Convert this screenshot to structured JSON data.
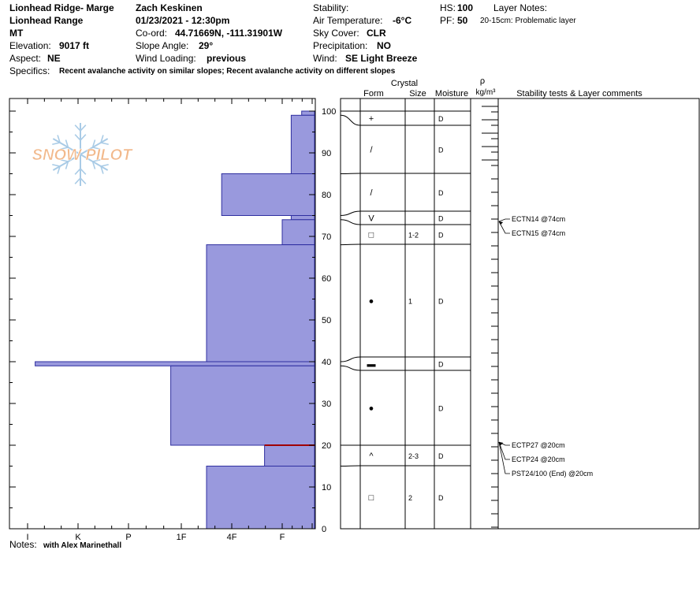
{
  "header": {
    "location": "Lionhead Ridge- Marge",
    "range": "Lionhead Range",
    "state": "MT",
    "elevation_label": "Elevation:",
    "elevation_value": "9017 ft",
    "aspect_label": "Aspect:",
    "aspect_value": "NE",
    "observer": "Zach Keskinen",
    "datetime": "01/23/2021 - 12:30pm",
    "coord_label": "Co-ord:",
    "coord_value": "44.71669N, -111.31901W",
    "slope_label": "Slope Angle:",
    "slope_value": "29°",
    "wind_loading_label": "Wind Loading:",
    "wind_loading_value": "previous",
    "stability_label": "Stability:",
    "air_temp_label": "Air Temperature:",
    "air_temp_value": "-6°C",
    "sky_label": "Sky Cover:",
    "sky_value": "CLR",
    "precip_label": "Precipitation:",
    "precip_value": "NO",
    "wind_label": "Wind:",
    "wind_value": "SE Light Breeze",
    "hs_label": "HS:",
    "hs_value": "100",
    "pf_label": "PF:",
    "pf_value": "50",
    "layer_notes_label": "Layer Notes:",
    "layer_note": "20-15cm: Problematic layer",
    "specifics_label": "Specifics:",
    "specifics_value": "Recent avalanche activity on similar slopes; Recent avalanche activity on different slopes"
  },
  "watermark": "SNOW PILOT",
  "notes_label": "Notes:",
  "notes_value": "with Alex Marinethall",
  "table_headers": {
    "crystal": "Crystal",
    "form": "Form",
    "size": "Size",
    "moisture": "Moisture",
    "rho": "ρ",
    "density_unit": "kg/m³",
    "comments": "Stability tests & Layer comments"
  },
  "chart_data": {
    "type": "bar",
    "orientation": "horizontal",
    "y_ticks": [
      0,
      10,
      20,
      30,
      40,
      50,
      60,
      70,
      80,
      90,
      100
    ],
    "ylim": [
      0,
      100
    ],
    "hardness_ticks": [
      "I",
      "K",
      "P",
      "1F",
      "4F",
      "F"
    ],
    "hardness_scale_values": [
      6,
      5,
      4,
      3,
      2,
      1
    ],
    "layers": [
      {
        "top": 100,
        "bottom": 99,
        "hardness": 0.35
      },
      {
        "top": 99,
        "bottom": 85,
        "hardness": 0.7
      },
      {
        "top": 85,
        "bottom": 75,
        "hardness": 2.2
      },
      {
        "top": 75,
        "bottom": 74,
        "hardness": 0.7
      },
      {
        "top": 74,
        "bottom": 68,
        "hardness": 1.0
      },
      {
        "top": 68,
        "bottom": 40,
        "hardness": 2.5
      },
      {
        "top": 40,
        "bottom": 39,
        "hardness": 5.85
      },
      {
        "top": 39,
        "bottom": 20,
        "hardness": 3.2
      },
      {
        "top": 20,
        "bottom": 15,
        "hardness": 1.35
      },
      {
        "top": 15,
        "bottom": 0,
        "hardness": 2.5
      }
    ],
    "problem_layer_line": 20,
    "profile_rows": [
      {
        "top": 100,
        "bottom": 99,
        "form_icon": "precipitation-particles",
        "form": "+",
        "size": "",
        "moisture": "D"
      },
      {
        "top": 99,
        "bottom": 85,
        "form_icon": "decomposing-fragments",
        "form": "/",
        "size": "",
        "moisture": "D"
      },
      {
        "top": 85,
        "bottom": 75,
        "form_icon": "decomposing-fragments",
        "form": "/",
        "size": "",
        "moisture": "D"
      },
      {
        "top": 75,
        "bottom": 74,
        "form_icon": "depth-hoar",
        "form": "V",
        "size": "",
        "moisture": "D"
      },
      {
        "top": 74,
        "bottom": 68,
        "form_icon": "faceted-crystals",
        "form": "□",
        "size": "1-2",
        "moisture": "D"
      },
      {
        "top": 68,
        "bottom": 40,
        "form_icon": "rounded-grains",
        "form": "●",
        "size": "1",
        "moisture": "D"
      },
      {
        "top": 40,
        "bottom": 39,
        "form_icon": "ice-formation",
        "form": "▬",
        "size": "",
        "moisture": "D"
      },
      {
        "top": 39,
        "bottom": 20,
        "form_icon": "rounded-grains",
        "form": "●",
        "size": "",
        "moisture": "D"
      },
      {
        "top": 20,
        "bottom": 15,
        "form_icon": "faceted-rounded",
        "form": "^",
        "size": "2-3",
        "moisture": "D"
      },
      {
        "top": 15,
        "bottom": 0,
        "form_icon": "faceted-crystals",
        "form": "□",
        "size": "2",
        "moisture": "D"
      }
    ],
    "stability_tests": [
      {
        "text": "ECTN14 @74cm",
        "depth": 74
      },
      {
        "text": "ECTN15 @74cm",
        "depth": 74
      },
      {
        "text": "ECTP27 @20cm",
        "depth": 20
      },
      {
        "text": "ECTP24 @20cm",
        "depth": 20
      },
      {
        "text": "PST24/100 (End) @20cm",
        "depth": 20
      }
    ]
  },
  "colors": {
    "bar_fill": "#9999dd",
    "bar_stroke": "#2f2fa0",
    "problem_line": "#a00000",
    "watermark": "#f2b98c",
    "snowflake": "#a9cbe6"
  }
}
